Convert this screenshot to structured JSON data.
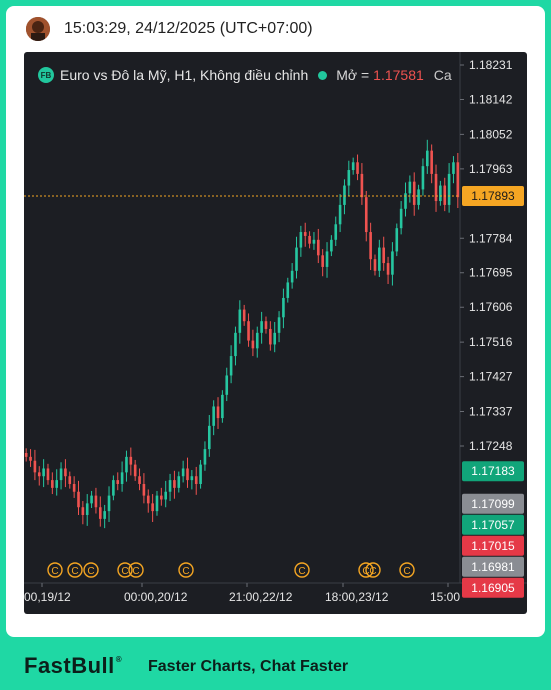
{
  "header": {
    "timestamp": "15:03:29, 24/12/2025 (UTC+07:00)"
  },
  "legend": {
    "badge": "FB",
    "title": "Euro vs Đô la Mỹ, H1, Không điều chỉnh",
    "open_label": "Mở =",
    "open_value": "1.17581",
    "truncated": "Ca"
  },
  "chart_data": {
    "type": "candlestick",
    "title": "Euro vs Đô la Mỹ, H1, Không điều chỉnh",
    "y_ticks": [
      "1.18231",
      "1.18142",
      "1.18052",
      "1.17963",
      "1.17784",
      "1.17695",
      "1.17606",
      "1.17516",
      "1.17427",
      "1.17337",
      "1.17248"
    ],
    "y_range": [
      1.1687,
      1.1828
    ],
    "x_ticks": [
      "00,19/12",
      "00:00,20/12",
      "21:00,22/12",
      "18:00,23/12",
      "15:00"
    ],
    "current_price": "1.17893",
    "current_price_color": "#f5a623",
    "price_tags": [
      {
        "label": "1.17183",
        "color": "#11a57a",
        "value": 1.17183
      },
      {
        "label": "1.17099",
        "color": "#8a8d93",
        "value": 1.17099
      },
      {
        "label": "1.17057",
        "color": "#11a57a",
        "value": 1.17057
      },
      {
        "label": "1.17015",
        "color": "#e53947",
        "value": 1.17015
      },
      {
        "label": "1.16981",
        "color": "#8a8d93",
        "value": 1.16981
      },
      {
        "label": "1.16905",
        "color": "#e53947",
        "value": 1.16905
      }
    ],
    "up_color": "#26c6a0",
    "down_color": "#ef5350",
    "event_markers": [
      "C",
      "C",
      "C",
      "C",
      "C",
      "C",
      "C",
      "C",
      "C",
      "C"
    ]
  },
  "footer": {
    "logo": "FastBull",
    "slogan": "Faster Charts, Chat Faster"
  }
}
